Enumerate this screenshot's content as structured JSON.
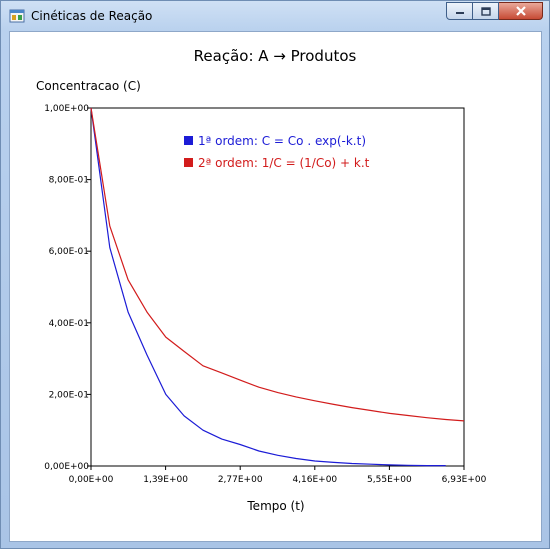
{
  "window": {
    "title": "Cinéticas de Reação"
  },
  "colors": {
    "first_order": "#1c1cd6",
    "second_order": "#d21c1c"
  },
  "chart_data": {
    "type": "line",
    "title": "Reação: A → Produtos",
    "ylabel": "Concentracao (C)",
    "xlabel": "Tempo (t)",
    "xlim": [
      0,
      6.93
    ],
    "ylim": [
      0,
      1
    ],
    "x_ticks": [
      "0,00E+00",
      "1,39E+00",
      "2,77E+00",
      "4,16E+00",
      "5,55E+00",
      "6,93E+00"
    ],
    "y_ticks": [
      "0,00E+00",
      "2,00E-01",
      "4,00E-01",
      "6,00E-01",
      "8,00E-01",
      "1,00E+00"
    ],
    "legend_position": "top",
    "x": [
      0,
      0.35,
      0.69,
      1.04,
      1.39,
      1.73,
      2.08,
      2.43,
      2.77,
      3.12,
      3.47,
      3.81,
      4.16,
      4.51,
      4.85,
      5.2,
      5.55,
      5.89,
      6.24,
      6.59,
      6.93
    ],
    "series": [
      {
        "name": "1ª ordem: C = Co . exp(-k.t)",
        "values": [
          1.0,
          0.61,
          0.43,
          0.31,
          0.2,
          0.14,
          0.1,
          0.075,
          0.06,
          0.042,
          0.03,
          0.021,
          0.014,
          0.01,
          0.007,
          0.005,
          0.003,
          0.002,
          0.001,
          0.001,
          null
        ]
      },
      {
        "name": "2ª ordem: 1/C = (1/Co) + k.t",
        "values": [
          1.0,
          0.67,
          0.52,
          0.43,
          0.36,
          0.32,
          0.28,
          0.26,
          0.24,
          0.22,
          0.205,
          0.193,
          0.182,
          0.172,
          0.163,
          0.155,
          0.147,
          0.141,
          0.135,
          0.13,
          0.126
        ]
      }
    ]
  }
}
